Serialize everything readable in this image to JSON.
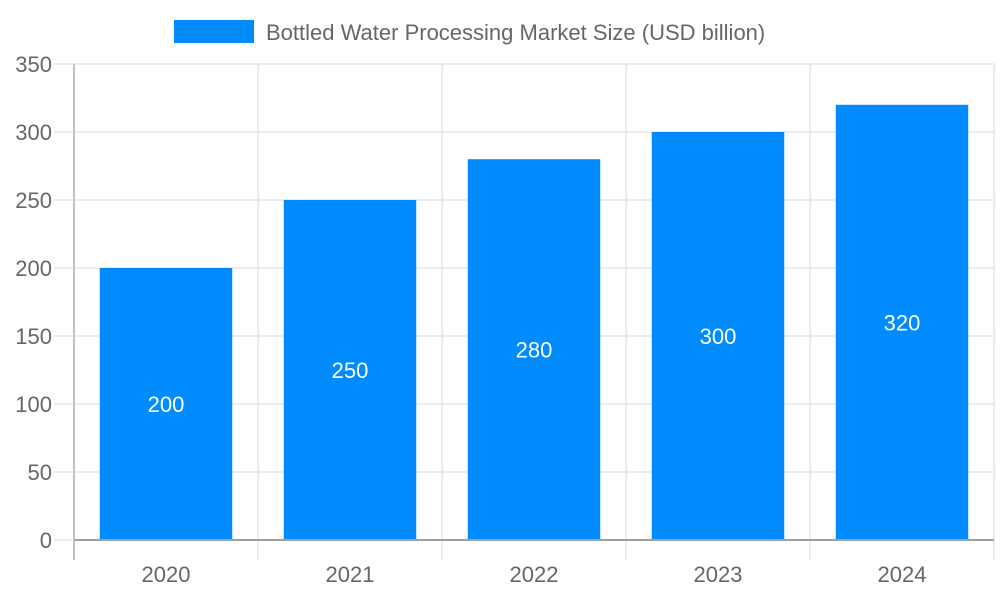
{
  "chart_data": {
    "type": "bar",
    "categories": [
      "2020",
      "2021",
      "2022",
      "2023",
      "2024"
    ],
    "series": [
      {
        "name": "Bottled Water Processing Market  Size (USD billion)",
        "values": [
          200,
          250,
          280,
          300,
          320
        ],
        "color": "#008cff"
      }
    ],
    "ylim": [
      0,
      350
    ],
    "yticks": [
      0,
      50,
      100,
      150,
      200,
      250,
      300,
      350
    ],
    "grid": true,
    "legend": "top-center",
    "data_labels": true,
    "text_color": "#666666",
    "grid_color": "#e0e0e0",
    "axis_color": "#a0a0a0"
  }
}
